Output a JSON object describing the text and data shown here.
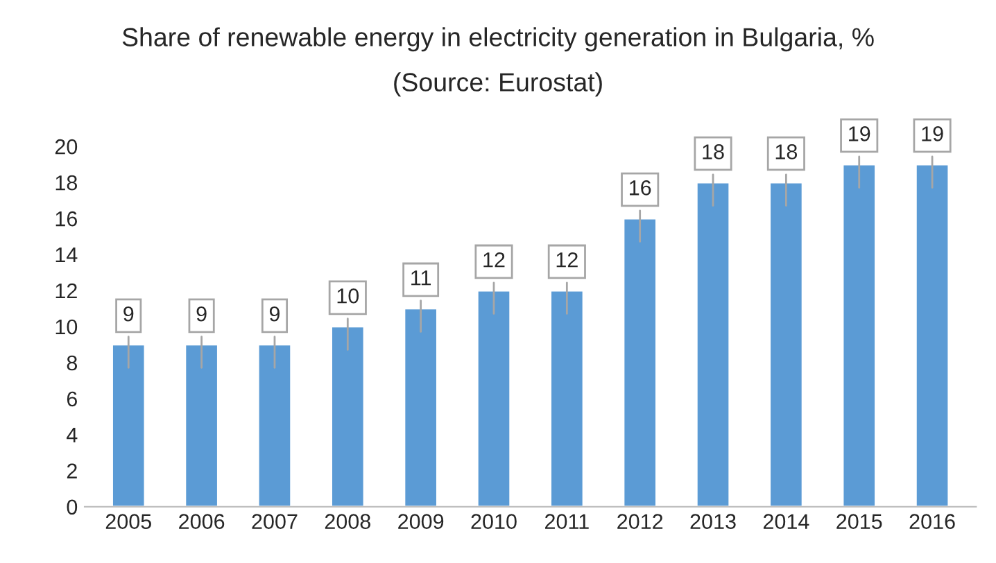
{
  "chart_data": {
    "type": "bar",
    "title": "Share of renewable energy in electricity generation in Bulgaria, %",
    "subtitle": "(Source: Eurostat)",
    "categories": [
      "2005",
      "2006",
      "2007",
      "2008",
      "2009",
      "2010",
      "2011",
      "2012",
      "2013",
      "2014",
      "2015",
      "2016"
    ],
    "values": [
      9,
      9,
      9,
      10,
      11,
      12,
      12,
      16,
      18,
      18,
      19,
      19
    ],
    "color": "#5b9bd5",
    "ylim": [
      0,
      20
    ],
    "yticks": [
      0,
      2,
      4,
      6,
      8,
      10,
      12,
      14,
      16,
      18,
      20
    ],
    "grid": false,
    "data_labels": true
  }
}
